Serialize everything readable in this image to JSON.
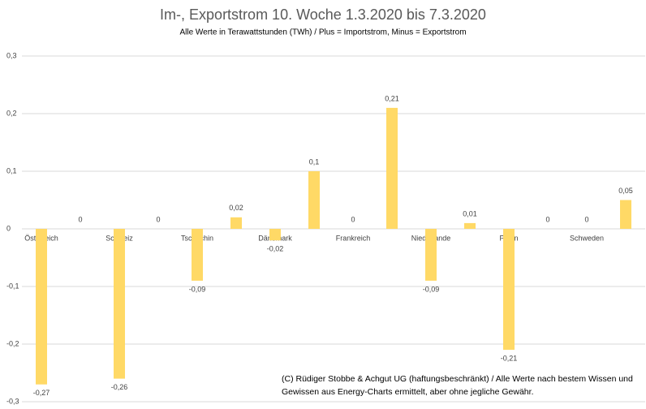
{
  "chart_data": {
    "type": "bar",
    "title": "Im-, Exportstrom 10. Woche 1.3.2020 bis 7.3.2020",
    "subtitle": "Alle Werte in Terawattstunden (TWh) / Plus = Importstrom, Minus = Exportstrom",
    "categories": [
      "Österreich",
      null,
      "Schweiz",
      null,
      "Tschechin",
      null,
      "Dänemark",
      null,
      "Frankreich",
      null,
      "Niederlande",
      null,
      "Polen",
      null,
      "Schweden",
      null
    ],
    "values": [
      -0.27,
      0,
      -0.26,
      0,
      -0.09,
      0.02,
      -0.02,
      0.1,
      0,
      0.21,
      -0.09,
      0.01,
      -0.21,
      0,
      0,
      0.05
    ],
    "value_labels": [
      "-0,27",
      "0",
      "-0,26",
      "0",
      "-0,09",
      "0,02",
      "-0,02",
      "0,1",
      "0",
      "0,21",
      "-0,09",
      "0,01",
      "-0,21",
      "0",
      "0",
      "0,05"
    ],
    "color": "#ffd966",
    "ylim": [
      -0.3,
      0.3
    ],
    "yticks": [
      {
        "value": -0.3,
        "label": "-0,3"
      },
      {
        "value": -0.2,
        "label": "-0,2"
      },
      {
        "value": -0.1,
        "label": "-0,1"
      },
      0,
      {
        "value": 0.1,
        "label": "0,1"
      },
      {
        "value": 0.2,
        "label": "0,2"
      },
      {
        "value": 0.3,
        "label": "0,3"
      }
    ],
    "grid": true,
    "annotation": [
      "(C) Rüdiger Stobbe & Achgut UG (haftungsbeschränkt) / Alle Werte nach bestem Wissen und",
      "Gewissen aus Energy-Charts ermittelt, aber ohne jegliche Gewähr."
    ]
  }
}
